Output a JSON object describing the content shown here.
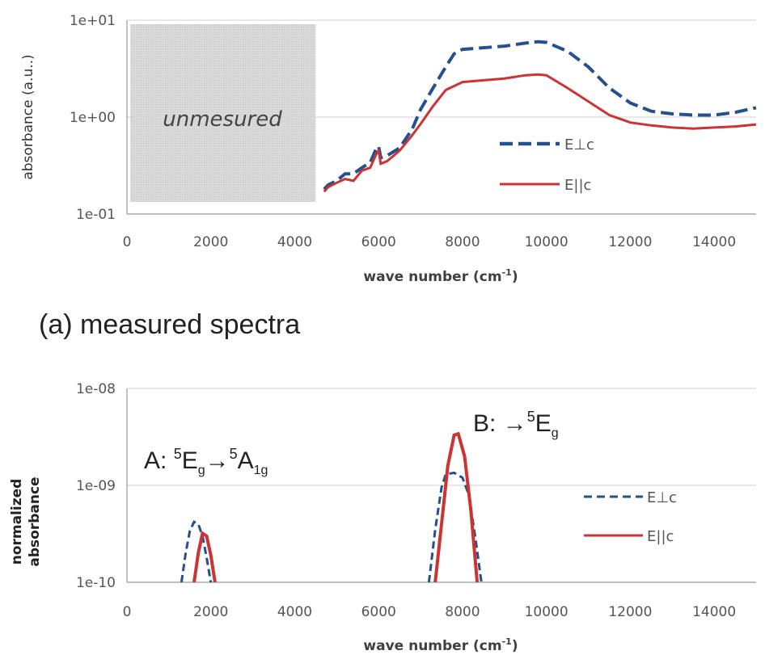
{
  "figure": {
    "caption_a": "(a) measured spectra"
  },
  "chart_data": [
    {
      "type": "line",
      "panel": "a",
      "xlabel": "wave number (cm",
      "xlabel_sup": "-1",
      "xlabel_end": ")",
      "ylabel": "absorbance (a.u..)",
      "xlim": [
        0,
        15000
      ],
      "ylim": [
        0.1,
        10
      ],
      "yscale": "log",
      "x_ticks": [
        "0",
        "2000",
        "4000",
        "6000",
        "8000",
        "10000",
        "12000",
        "14000"
      ],
      "y_ticks": [
        "1e-01",
        "1e+00",
        "1e+01"
      ],
      "grid": "horizontal",
      "legend_position": "right",
      "annotation": "unmesured",
      "shaded_region": [
        0,
        4500
      ],
      "series": [
        {
          "name": "E⊥c",
          "color": "#24508f",
          "dash": "dashed",
          "x": [
            4700,
            4800,
            5000,
            5200,
            5400,
            5600,
            5800,
            5950,
            6000,
            6050,
            6200,
            6500,
            6800,
            7000,
            7300,
            7600,
            7800,
            8000,
            8500,
            9000,
            9500,
            9800,
            10000,
            10500,
            11000,
            11500,
            12000,
            12500,
            13000,
            13500,
            14000,
            14500,
            15000
          ],
          "y": [
            0.18,
            0.2,
            0.22,
            0.26,
            0.26,
            0.3,
            0.34,
            0.48,
            0.5,
            0.38,
            0.4,
            0.48,
            0.75,
            1.2,
            2.0,
            3.3,
            4.5,
            5.0,
            5.2,
            5.4,
            5.8,
            6.0,
            5.9,
            4.8,
            3.3,
            2.0,
            1.4,
            1.15,
            1.08,
            1.05,
            1.05,
            1.12,
            1.25
          ]
        },
        {
          "name": "E||c",
          "color": "#cc3333",
          "dash": "solid",
          "x": [
            4700,
            4800,
            5000,
            5200,
            5400,
            5600,
            5800,
            5950,
            6000,
            6050,
            6200,
            6500,
            6800,
            7000,
            7300,
            7600,
            8000,
            8500,
            9000,
            9500,
            9800,
            10000,
            10500,
            11000,
            11500,
            12000,
            12500,
            13000,
            13500,
            14000,
            14500,
            15000
          ],
          "y": [
            0.17,
            0.19,
            0.21,
            0.23,
            0.22,
            0.28,
            0.3,
            0.42,
            0.45,
            0.33,
            0.35,
            0.45,
            0.65,
            0.85,
            1.3,
            1.9,
            2.3,
            2.4,
            2.5,
            2.7,
            2.75,
            2.7,
            2.0,
            1.45,
            1.05,
            0.88,
            0.82,
            0.78,
            0.76,
            0.78,
            0.8,
            0.84
          ]
        }
      ]
    },
    {
      "type": "line",
      "panel": "b",
      "xlabel": "wave number (cm",
      "xlabel_sup": "-1",
      "xlabel_end": ")",
      "ylabel_line1": "normalized",
      "ylabel_line2": "absorbance",
      "xlim": [
        0,
        15000
      ],
      "ylim": [
        1e-10,
        1e-08
      ],
      "yscale": "log",
      "x_ticks": [
        "0",
        "2000",
        "4000",
        "6000",
        "8000",
        "10000",
        "12000",
        "14000"
      ],
      "y_ticks": [
        "1e-10",
        "1e-09",
        "1e-08"
      ],
      "grid": "horizontal",
      "legend_position": "right",
      "annotation_a_prefix": "A: ",
      "annotation_a_sup1": "5",
      "annotation_a_E": "E",
      "annotation_a_sub1": "g",
      "annotation_a_arrow": "→",
      "annotation_a_sup2": "5",
      "annotation_a_A": "A",
      "annotation_a_sub2": "1g",
      "annotation_b_prefix": "B: →",
      "annotation_b_sup": "5",
      "annotation_b_E": "E",
      "annotation_b_sub": "g",
      "series": [
        {
          "name": "E⊥c",
          "color": "#24508f",
          "dash": "dashed",
          "segments": [
            {
              "x": [
                1300,
                1400,
                1500,
                1600,
                1700,
                1800,
                1900,
                2000
              ],
              "y": [
                1e-10,
                2e-10,
                3.4e-10,
                4.2e-10,
                4e-10,
                3e-10,
                1.8e-10,
                1e-10
              ]
            },
            {
              "x": [
                7200,
                7350,
                7500,
                7600,
                7800,
                8000,
                8150,
                8300,
                8450
              ],
              "y": [
                1e-10,
                3.5e-10,
                9.5e-10,
                1.3e-09,
                1.35e-09,
                1.2e-09,
                8e-10,
                3e-10,
                1e-10
              ]
            }
          ]
        },
        {
          "name": "E||c",
          "color": "#cc3333",
          "dash": "solid",
          "segments": [
            {
              "x": [
                1600,
                1700,
                1800,
                1900,
                2000,
                2100
              ],
              "y": [
                1e-10,
                2e-10,
                3.2e-10,
                3e-10,
                1.9e-10,
                1e-10
              ]
            },
            {
              "x": [
                7350,
                7500,
                7650,
                7800,
                7900,
                8050,
                8200,
                8350
              ],
              "y": [
                1e-10,
                4e-10,
                1.6e-09,
                3.3e-09,
                3.4e-09,
                2e-09,
                5.5e-10,
                1e-10
              ]
            }
          ]
        }
      ]
    }
  ]
}
